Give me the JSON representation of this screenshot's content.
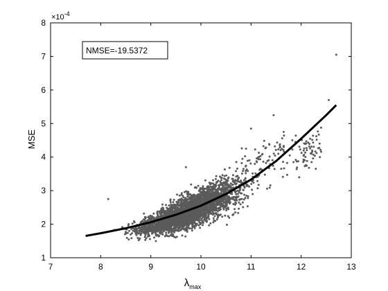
{
  "chart_data": {
    "type": "scatter",
    "xlabel_main": "λ",
    "xlabel_sub": "max",
    "ylabel": "MSE",
    "y_exponent_prefix": "×10",
    "y_exponent": "-4",
    "xlim": [
      7,
      13
    ],
    "ylim": [
      1,
      8
    ],
    "x_ticks": [
      "7",
      "8",
      "9",
      "10",
      "11",
      "12",
      "13"
    ],
    "y_ticks": [
      "1",
      "2",
      "3",
      "4",
      "5",
      "6",
      "7",
      "8"
    ],
    "annotation": "NMSE=-19.5372",
    "grid": false,
    "colors": {
      "points": "#5a5a5a",
      "curve": "#000000",
      "axes": "#000000"
    },
    "scatter_summary": {
      "center_points": [
        [
          7.9,
          1.62
        ],
        [
          8.5,
          1.75
        ],
        [
          9.0,
          1.95
        ],
        [
          9.5,
          2.2
        ],
        [
          10.0,
          2.55
        ],
        [
          10.5,
          2.9
        ],
        [
          11.0,
          3.3
        ],
        [
          11.5,
          3.7
        ]
      ],
      "outliers": [
        [
          8.15,
          2.75
        ],
        [
          12.7,
          7.05
        ],
        [
          12.55,
          5.7
        ],
        [
          11.45,
          5.25
        ],
        [
          11.65,
          4.75
        ],
        [
          12.2,
          4.1
        ],
        [
          11.0,
          4.85
        ],
        [
          10.9,
          4.25
        ],
        [
          9.7,
          3.7
        ]
      ]
    },
    "fit_curve": {
      "x": [
        7.7,
        8.0,
        8.5,
        9.0,
        9.5,
        10.0,
        10.5,
        11.0,
        11.5,
        12.0,
        12.5,
        12.7
      ],
      "y": [
        1.65,
        1.73,
        1.88,
        2.06,
        2.28,
        2.55,
        2.9,
        3.33,
        3.88,
        4.55,
        5.25,
        5.55
      ]
    }
  }
}
